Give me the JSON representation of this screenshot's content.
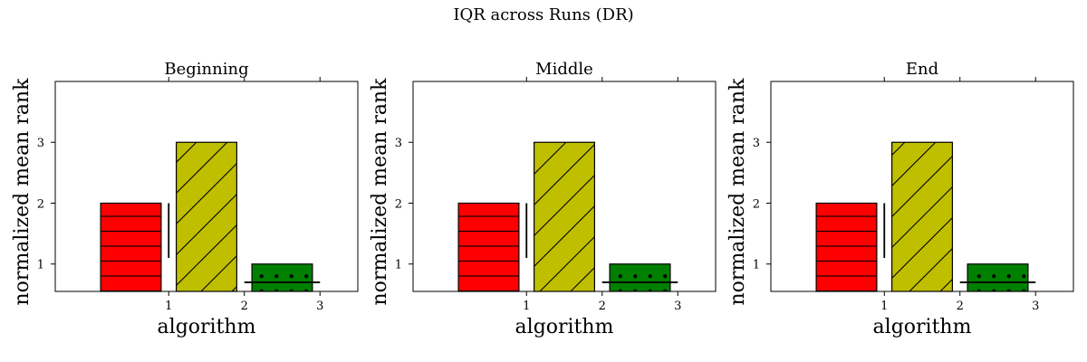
{
  "figure": {
    "suptitle": "IQR across Runs (DR)"
  },
  "chart_data": [
    {
      "type": "bar",
      "title": "Beginning",
      "xlabel": "algorithm",
      "ylabel": "normalized mean rank",
      "x": [
        0.5,
        1.5,
        2.5
      ],
      "values": [
        2,
        3,
        1
      ],
      "bar_colors": [
        "#ff0000",
        "#bfbf00",
        "#008000"
      ],
      "hatches": [
        "horizontal-lines",
        "diagonal-lines",
        "dots"
      ],
      "xticks": [
        1,
        2,
        3
      ],
      "yticks": [
        1,
        2,
        3
      ],
      "xlim": [
        -0.5,
        3.5
      ],
      "ylim": [
        4,
        0.55
      ],
      "y_inverted": true,
      "grid": false,
      "annotations": {
        "vertical_line": {
          "x": 1,
          "y_from": 2,
          "y_to": 1.1
        },
        "horizontal_line": {
          "y": 0.7,
          "x_from": 2,
          "x_to": 3
        }
      }
    },
    {
      "type": "bar",
      "title": "Middle",
      "xlabel": "algorithm",
      "ylabel": "normalized mean rank",
      "x": [
        0.5,
        1.5,
        2.5
      ],
      "values": [
        2,
        3,
        1
      ],
      "bar_colors": [
        "#ff0000",
        "#bfbf00",
        "#008000"
      ],
      "hatches": [
        "horizontal-lines",
        "diagonal-lines",
        "dots"
      ],
      "xticks": [
        1,
        2,
        3
      ],
      "yticks": [
        1,
        2,
        3
      ],
      "xlim": [
        -0.5,
        3.5
      ],
      "ylim": [
        4,
        0.55
      ],
      "y_inverted": true,
      "grid": false,
      "annotations": {
        "vertical_line": {
          "x": 1,
          "y_from": 2,
          "y_to": 1.1
        },
        "horizontal_line": {
          "y": 0.7,
          "x_from": 2,
          "x_to": 3
        }
      }
    },
    {
      "type": "bar",
      "title": "End",
      "xlabel": "algorithm",
      "ylabel": "normalized mean rank",
      "x": [
        0.5,
        1.5,
        2.5
      ],
      "values": [
        2,
        3,
        1
      ],
      "bar_colors": [
        "#ff0000",
        "#bfbf00",
        "#008000"
      ],
      "hatches": [
        "horizontal-lines",
        "diagonal-lines",
        "dots"
      ],
      "xticks": [
        1,
        2,
        3
      ],
      "yticks": [
        1,
        2,
        3
      ],
      "xlim": [
        -0.5,
        3.5
      ],
      "ylim": [
        4,
        0.55
      ],
      "y_inverted": true,
      "grid": false,
      "annotations": {
        "vertical_line": {
          "x": 1,
          "y_from": 2,
          "y_to": 1.1
        },
        "horizontal_line": {
          "y": 0.7,
          "x_from": 2,
          "x_to": 3
        }
      }
    }
  ]
}
